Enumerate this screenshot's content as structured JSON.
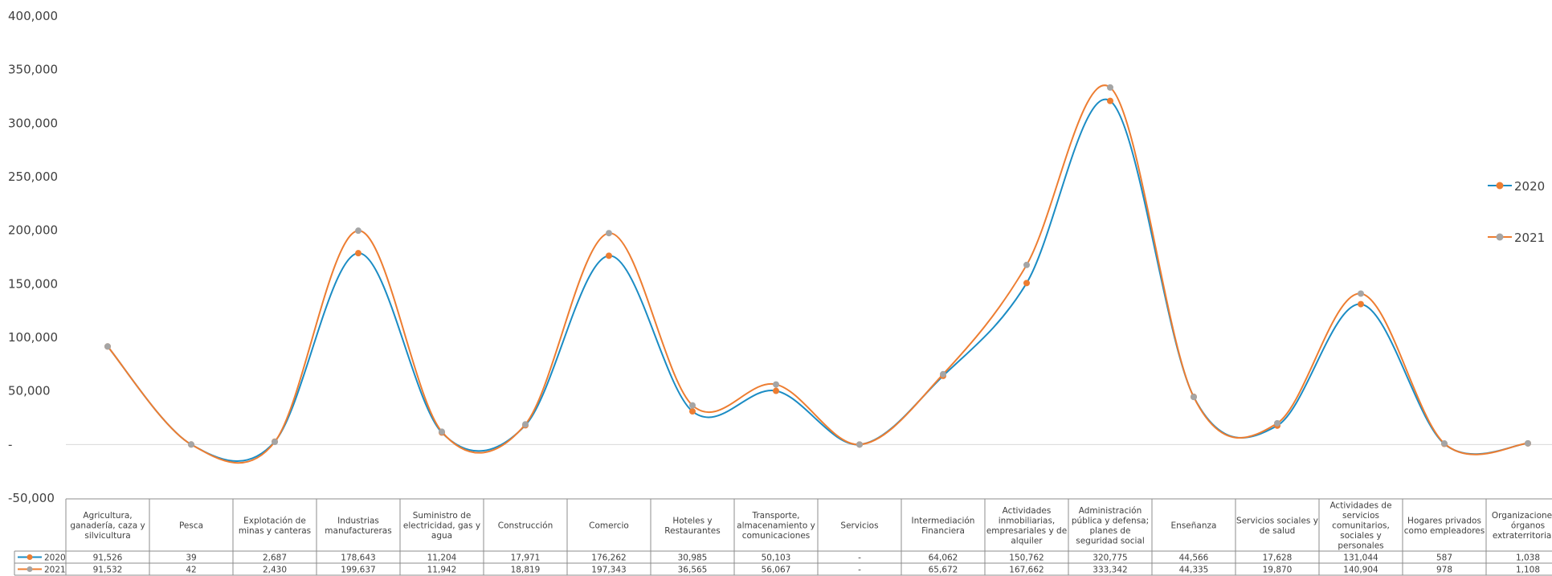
{
  "chart_data": {
    "type": "line",
    "smooth": true,
    "ylim": [
      -50000,
      400000
    ],
    "ytick_step": 50000,
    "yticks": [
      "400,000",
      "350,000",
      "300,000",
      "250,000",
      "200,000",
      "150,000",
      "100,000",
      "50,000",
      "-",
      "-50,000"
    ],
    "grid": false,
    "legend_position": "right",
    "data_table": true,
    "categories": [
      [
        "Agricultura,",
        "ganadería, caza y",
        "silvicultura"
      ],
      [
        "Pesca"
      ],
      [
        "Explotación de",
        "minas y canteras"
      ],
      [
        "Industrias",
        "manufactureras"
      ],
      [
        "Suministro de",
        "electricidad, gas y",
        "agua"
      ],
      [
        "Construcción"
      ],
      [
        "Comercio"
      ],
      [
        "Hoteles y",
        "Restaurantes"
      ],
      [
        "Transporte,",
        "almacenamiento y",
        "comunicaciones"
      ],
      [
        "Servicios"
      ],
      [
        "Intermediación",
        "Financiera"
      ],
      [
        "Actividades",
        "inmobiliarias,",
        "empresariales y de",
        "alquiler"
      ],
      [
        "Administración",
        "pública y defensa;",
        "planes de",
        "seguridad social"
      ],
      [
        "Enseñanza"
      ],
      [
        "Servicios sociales y",
        "de salud"
      ],
      [
        "Actividades de",
        "servicios",
        "comunitarios,",
        "sociales y",
        "personales"
      ],
      [
        "Hogares privados",
        "como empleadores"
      ],
      [
        "Organizaciones y",
        "órganos",
        "extraterritoriales"
      ]
    ],
    "series": [
      {
        "name": "2020",
        "line_color": "#1B8CC4",
        "marker_color": "#ED7D31",
        "values": [
          91526,
          39,
          2687,
          178643,
          11204,
          17971,
          176262,
          30985,
          50103,
          0,
          64062,
          150762,
          320775,
          44566,
          17628,
          131044,
          587,
          1038
        ],
        "labels": [
          "91,526",
          "39",
          "2,687",
          "178,643",
          "11,204",
          "17,971",
          "176,262",
          "30,985",
          "50,103",
          "-",
          "64,062",
          "150,762",
          "320,775",
          "44,566",
          "17,628",
          "131,044",
          "587",
          "1,038"
        ]
      },
      {
        "name": "2021",
        "line_color": "#ED7D31",
        "marker_color": "#A5A5A5",
        "values": [
          91532,
          42,
          2430,
          199637,
          11942,
          18819,
          197343,
          36565,
          56067,
          0,
          65672,
          167662,
          333342,
          44335,
          19870,
          140904,
          978,
          1108
        ],
        "labels": [
          "91,532",
          "42",
          "2,430",
          "199,637",
          "11,942",
          "18,819",
          "197,343",
          "36,565",
          "56,067",
          "-",
          "65,672",
          "167,662",
          "333,342",
          "44,335",
          "19,870",
          "140,904",
          "978",
          "1,108"
        ]
      }
    ]
  }
}
